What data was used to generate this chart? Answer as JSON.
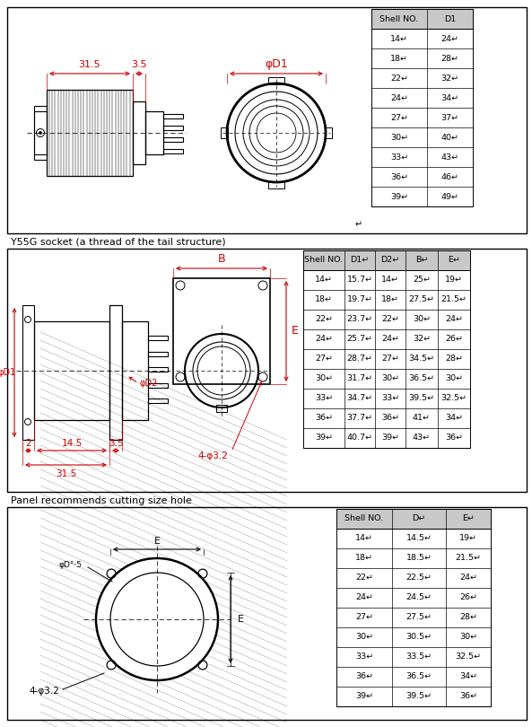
{
  "bg_color": "#ffffff",
  "red_color": "#cc0000",
  "table1": {
    "headers": [
      "Shell NO.",
      "D1"
    ],
    "rows": [
      [
        "14↵",
        "24↵"
      ],
      [
        "18↵",
        "28↵"
      ],
      [
        "22↵",
        "32↵"
      ],
      [
        "24↵",
        "34↵"
      ],
      [
        "27↵",
        "37↵"
      ],
      [
        "30↵",
        "40↵"
      ],
      [
        "33↵",
        "43↵"
      ],
      [
        "36↵",
        "46↵"
      ],
      [
        "39↵",
        "49↵"
      ]
    ]
  },
  "table2": {
    "headers": [
      "Shell NO.",
      "D1↵",
      "D2↵",
      "B↵",
      "E↵"
    ],
    "rows": [
      [
        "14↵",
        "15.7↵",
        "14↵",
        "25↵",
        "19↵"
      ],
      [
        "18↵",
        "19.7↵",
        "18↵",
        "27.5↵",
        "21.5↵"
      ],
      [
        "22↵",
        "23.7↵",
        "22↵",
        "30↵",
        "24↵"
      ],
      [
        "24↵",
        "25.7↵",
        "24↵",
        "32↵",
        "26↵"
      ],
      [
        "27↵",
        "28.7↵",
        "27↵",
        "34.5↵",
        "28↵"
      ],
      [
        "30↵",
        "31.7↵",
        "30↵",
        "36.5↵",
        "30↵"
      ],
      [
        "33↵",
        "34.7↵",
        "33↵",
        "39.5↵",
        "32.5↵"
      ],
      [
        "36↵",
        "37.7↵",
        "36↵",
        "41↵",
        "34↵"
      ],
      [
        "39↵",
        "40.7↵",
        "39↵",
        "43↵",
        "36↵"
      ]
    ]
  },
  "table3": {
    "headers": [
      "Shell NO.",
      "D↵",
      "E↵"
    ],
    "rows": [
      [
        "14↵",
        "14.5↵",
        "19↵"
      ],
      [
        "18↵",
        "18.5↵",
        "21.5↵"
      ],
      [
        "22↵",
        "22.5↵",
        "24↵"
      ],
      [
        "24↵",
        "24.5↵",
        "26↵"
      ],
      [
        "27↵",
        "27.5↵",
        "28↵"
      ],
      [
        "30↵",
        "30.5↵",
        "30↵"
      ],
      [
        "33↵",
        "33.5↵",
        "32.5↵"
      ],
      [
        "36↵",
        "36.5↵",
        "34↵"
      ],
      [
        "39↵",
        "39.5↵",
        "36↵"
      ]
    ]
  },
  "label1": "Y55G socket (a thread of the tail structure)",
  "label2": "Panel recommends cutting size hole"
}
